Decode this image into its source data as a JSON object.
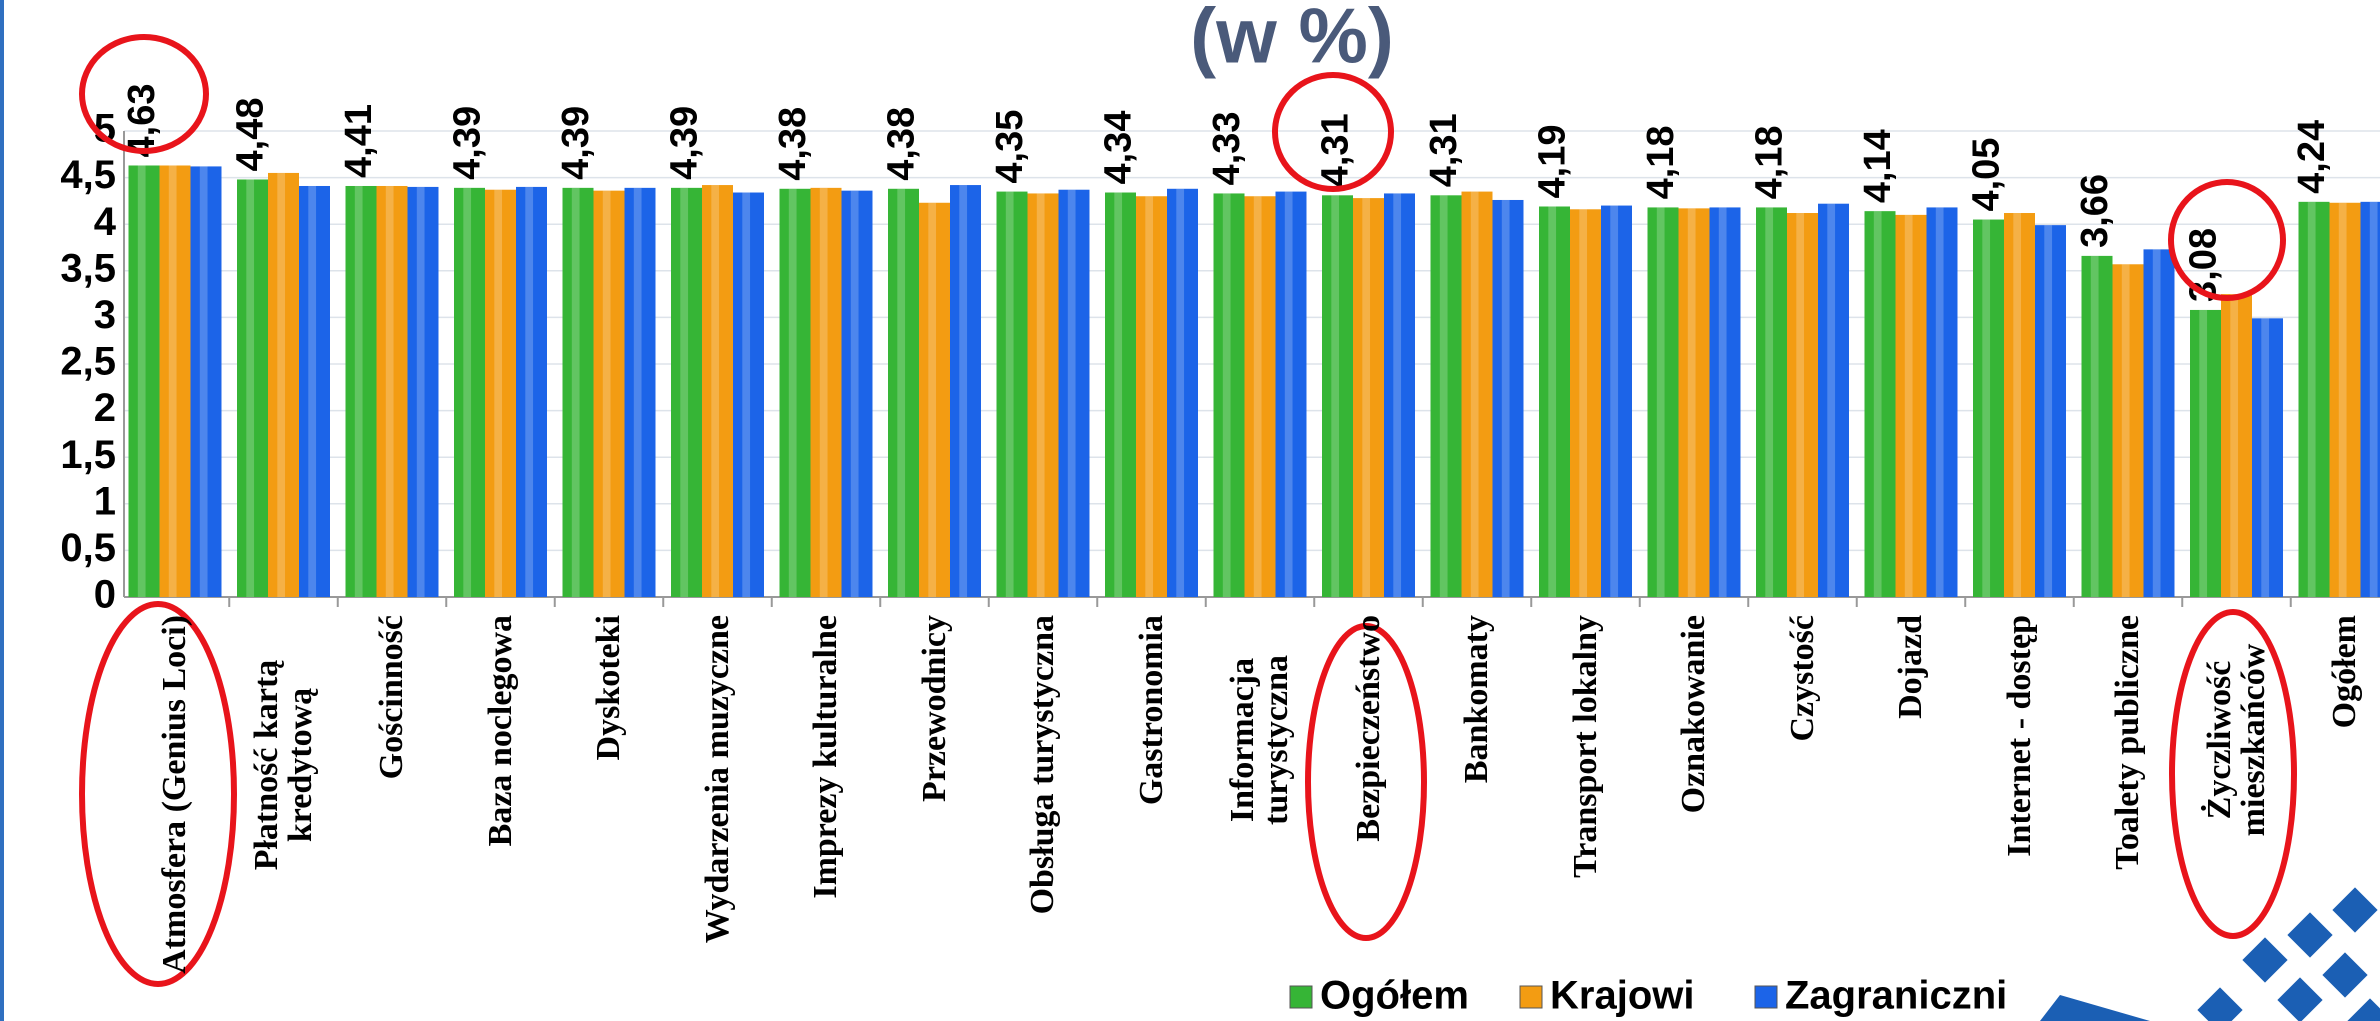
{
  "chart_data": {
    "type": "bar",
    "title": "(w %)",
    "categories": [
      "Atmosfera (Genius Loci)",
      "Płatność kartą kredytową",
      "Gościnność",
      "Baza noclegowa",
      "Dyskoteki",
      "Wydarzenia muzyczne",
      "Imprezy kulturalne",
      "Przewodnicy",
      "Obsługa turystyczna",
      "Gastronomia",
      "Informacja turystyczna",
      "Bezpieczeństwo",
      "Bankomaty",
      "Transport lokalny",
      "Oznakowanie",
      "Czystość",
      "Dojazd",
      "Internet - dostęp",
      "Toalety publiczne",
      "Życzliwość mieszkańców",
      "Ogółem"
    ],
    "series": [
      {
        "name": "Ogółem",
        "color": "#36b536",
        "values": [
          4.63,
          4.48,
          4.41,
          4.39,
          4.39,
          4.39,
          4.38,
          4.38,
          4.35,
          4.34,
          4.33,
          4.31,
          4.31,
          4.19,
          4.18,
          4.18,
          4.14,
          4.05,
          3.66,
          3.08,
          4.24
        ],
        "value_labels": [
          "4,63",
          "4,48",
          "4,41",
          "4,39",
          "4,39",
          "4,39",
          "4,38",
          "4,38",
          "4,35",
          "4,34",
          "4,33",
          "4,31",
          "4,31",
          "4,19",
          "4,18",
          "4,18",
          "4,14",
          "4,05",
          "3,66",
          "3,08",
          "4,24"
        ]
      },
      {
        "name": "Krajowi",
        "color": "#f39c12",
        "values": [
          4.63,
          4.55,
          4.41,
          4.37,
          4.36,
          4.42,
          4.39,
          4.23,
          4.33,
          4.3,
          4.3,
          4.28,
          4.35,
          4.16,
          4.17,
          4.12,
          4.1,
          4.12,
          3.57,
          3.25,
          4.23
        ]
      },
      {
        "name": "Zagraniczni",
        "color": "#1c64e8",
        "values": [
          4.62,
          4.41,
          4.4,
          4.4,
          4.39,
          4.34,
          4.36,
          4.42,
          4.37,
          4.38,
          4.35,
          4.33,
          4.26,
          4.2,
          4.18,
          4.22,
          4.18,
          3.99,
          3.73,
          2.99,
          4.24
        ]
      }
    ],
    "ylim": [
      0,
      5
    ],
    "yticks": [
      0,
      {
        "value": 0.5,
        "label": "0,5"
      },
      1,
      {
        "value": 1.5,
        "label": "1,5"
      },
      2,
      {
        "value": 2.5,
        "label": "2,5"
      },
      3,
      {
        "value": 3.5,
        "label": "3,5"
      },
      4,
      {
        "value": 4.5,
        "label": "4,5"
      },
      5
    ],
    "grid": true,
    "legend": "bottom"
  }
}
